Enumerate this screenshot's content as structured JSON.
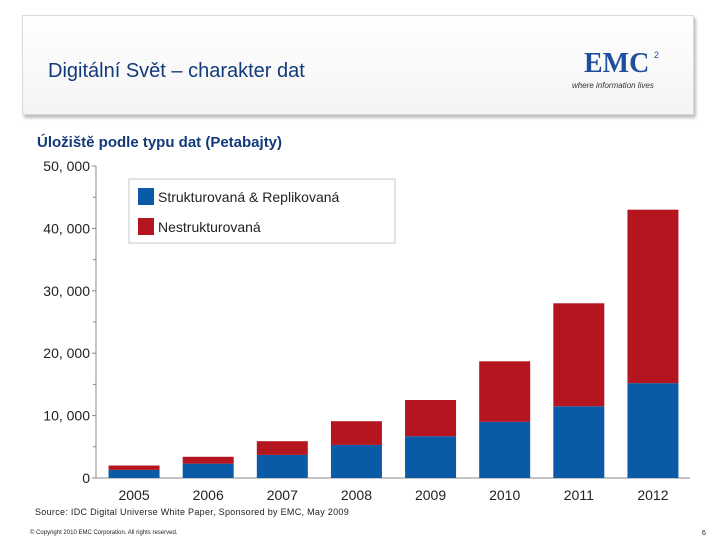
{
  "slide": {
    "title": "Digitální Svět – charakter dat",
    "logo_text": "EMC",
    "logo_superscript": "2",
    "logo_tagline": "where information lives",
    "source": "Source: IDC Digital Universe White Paper, Sponsored by EMC, May 2009",
    "copyright": "© Copyright 2010 EMC Corporation. All rights reserved.",
    "page_number": "6"
  },
  "colors": {
    "structured": "#0b5aa6",
    "unstructured": "#b5151e",
    "title": "#123a7a"
  },
  "chart_data": {
    "type": "bar",
    "stacked": true,
    "title": "Úložiště podle typu dat (Petabajty)",
    "categories": [
      "2005",
      "2006",
      "2007",
      "2008",
      "2009",
      "2010",
      "2011",
      "2012"
    ],
    "series": [
      {
        "name": "Strukturovaná & Replikovaná",
        "color": "#0b5aa6",
        "values": [
          1300,
          2300,
          3700,
          5300,
          6700,
          9000,
          11500,
          15200
        ]
      },
      {
        "name": "Nestrukturovaná",
        "color": "#b5151e",
        "values": [
          700,
          1100,
          2200,
          3800,
          5800,
          9700,
          16500,
          27800
        ]
      }
    ],
    "y_ticks": [
      "0",
      "10, 000",
      "20, 000",
      "30, 000",
      "40, 000",
      "50, 000"
    ],
    "ylim": [
      0,
      50000
    ],
    "legend_position": "top-left",
    "xlabel": "",
    "ylabel": ""
  }
}
